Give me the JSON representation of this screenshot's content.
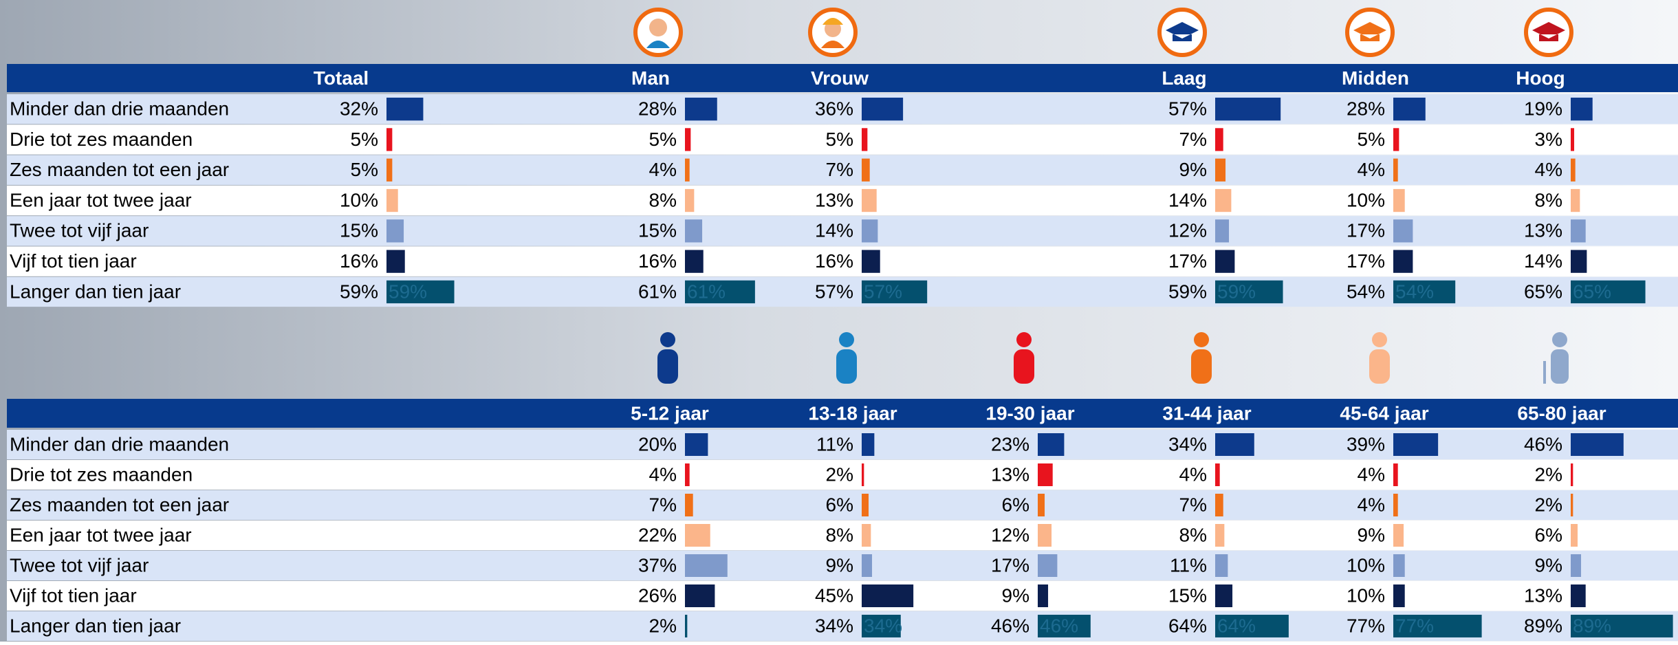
{
  "tables": [
    {
      "columns": [
        "Totaal",
        "Man",
        "Vrouw",
        "Laag",
        "Midden",
        "Hoog"
      ],
      "row_colors": [
        "#0d3a8c",
        "#e8141e",
        "#f07018",
        "#fbb58a",
        "#7f9acb",
        "#0c1f4f",
        "#04506e"
      ],
      "rows": [
        {
          "label": "Minder dan drie maanden",
          "values": [
            32,
            28,
            36,
            57,
            28,
            19
          ],
          "value_labels": [
            "32%",
            "28%",
            "36%",
            "57%",
            "28%",
            "19%"
          ]
        },
        {
          "label": "Drie tot zes maanden",
          "values": [
            5,
            5,
            5,
            7,
            5,
            3
          ],
          "value_labels": [
            "5%",
            "5%",
            "5%",
            "7%",
            "5%",
            "3%"
          ]
        },
        {
          "label": "Zes maanden tot een jaar",
          "values": [
            5,
            4,
            7,
            9,
            4,
            4
          ],
          "value_labels": [
            "5%",
            "4%",
            "7%",
            "9%",
            "4%",
            "4%"
          ]
        },
        {
          "label": "Een jaar tot twee jaar",
          "values": [
            10,
            8,
            13,
            14,
            10,
            8
          ],
          "value_labels": [
            "10%",
            "8%",
            "13%",
            "14%",
            "10%",
            "8%"
          ]
        },
        {
          "label": "Twee tot vijf jaar",
          "values": [
            15,
            15,
            14,
            12,
            17,
            13
          ],
          "value_labels": [
            "15%",
            "15%",
            "14%",
            "12%",
            "17%",
            "13%"
          ]
        },
        {
          "label": "Vijf tot tien jaar",
          "values": [
            16,
            16,
            16,
            17,
            17,
            14
          ],
          "value_labels": [
            "16%",
            "16%",
            "16%",
            "17%",
            "17%",
            "14%"
          ]
        },
        {
          "label": "Langer dan tien jaar",
          "values": [
            59,
            61,
            57,
            59,
            54,
            65
          ],
          "value_labels": [
            "59%",
            "61%",
            "57%",
            "59%",
            "54%",
            "65%"
          ]
        }
      ]
    },
    {
      "columns": [
        "5-12 jaar",
        "13-18 jaar",
        "19-30 jaar",
        "31-44 jaar",
        "45-64 jaar",
        "65-80 jaar"
      ],
      "row_colors": [
        "#0d3a8c",
        "#e8141e",
        "#f07018",
        "#fbb58a",
        "#7f9acb",
        "#0c1f4f",
        "#04506e"
      ],
      "rows": [
        {
          "label": "Minder dan drie maanden",
          "values": [
            20,
            11,
            23,
            34,
            39,
            46
          ],
          "value_labels": [
            "20%",
            "11%",
            "23%",
            "34%",
            "39%",
            "46%"
          ]
        },
        {
          "label": "Drie tot zes maanden",
          "values": [
            4,
            2,
            13,
            4,
            4,
            2
          ],
          "value_labels": [
            "4%",
            "2%",
            "13%",
            "4%",
            "4%",
            "2%"
          ]
        },
        {
          "label": "Zes maanden tot een jaar",
          "values": [
            7,
            6,
            6,
            7,
            4,
            2
          ],
          "value_labels": [
            "7%",
            "6%",
            "6%",
            "7%",
            "4%",
            "2%"
          ]
        },
        {
          "label": "Een jaar tot twee jaar",
          "values": [
            22,
            8,
            12,
            8,
            9,
            6
          ],
          "value_labels": [
            "22%",
            "8%",
            "12%",
            "8%",
            "9%",
            "6%"
          ]
        },
        {
          "label": "Twee tot vijf jaar",
          "values": [
            37,
            9,
            17,
            11,
            10,
            9
          ],
          "value_labels": [
            "37%",
            "9%",
            "17%",
            "11%",
            "10%",
            "9%"
          ]
        },
        {
          "label": "Vijf tot tien jaar",
          "values": [
            26,
            45,
            9,
            15,
            10,
            13
          ],
          "value_labels": [
            "26%",
            "45%",
            "9%",
            "15%",
            "10%",
            "13%"
          ]
        },
        {
          "label": "Langer dan tien jaar",
          "values": [
            2,
            34,
            46,
            64,
            77,
            89
          ],
          "value_labels": [
            "2%",
            "34%",
            "46%",
            "64%",
            "77%",
            "89%"
          ]
        }
      ]
    }
  ]
}
